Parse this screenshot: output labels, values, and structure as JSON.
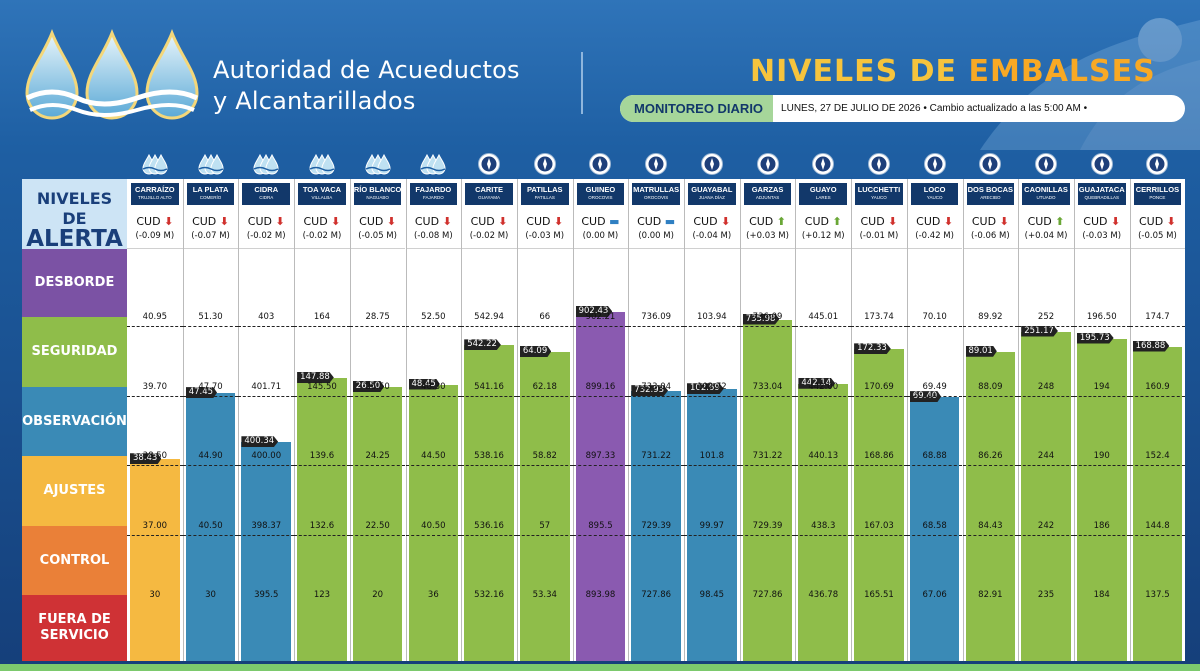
{
  "header": {
    "org_line1": "Autoridad de Acueductos",
    "org_line2": "y Alcantarillados",
    "title_a": "NIVELES DE ",
    "title_b": "EMBALSES",
    "monitor_label": "MONITOREO DIARIO",
    "date_text": "LUNES, 27 DE JULIO DE 2026 • Cambio actualizado a las 5:00 AM •"
  },
  "legend": {
    "title_line1": "NIVELES DE",
    "title_line2": "ALERTA",
    "levels": [
      {
        "label": "DESBORDE",
        "color": "#7b52a4"
      },
      {
        "label": "SEGURIDAD",
        "color": "#8fbd4a"
      },
      {
        "label": "OBSERVACIÓN",
        "color": "#3a8ab6"
      },
      {
        "label": "AJUSTES",
        "color": "#f5b941"
      },
      {
        "label": "CONTROL",
        "color": "#ea8038"
      },
      {
        "label": "FUERA DE SERVICIO",
        "color": "#cf3235"
      }
    ]
  },
  "colors": {
    "desborde": "#8a5ab0",
    "seguridad": "#8fbd4a",
    "observacion": "#3a8ab6",
    "ajustes": "#f5b941",
    "control": "#ea8038",
    "fuera": "#cf3235",
    "up_arrow": "#6aa736",
    "down_arrow": "#d0312d",
    "flat": "#2f7fc2"
  },
  "chart_data": {
    "type": "bar",
    "unit": "CUD",
    "reservoirs": [
      {
        "name": "CARRAÍZO",
        "muni": "TRUJILLO ALTO",
        "change": "(-0.09 M)",
        "trend": "down",
        "level": "38.43",
        "state": "ajustes",
        "icon": "drops",
        "thresholds": [
          "40.95",
          "39.70",
          "38.50",
          "37.00",
          "30"
        ]
      },
      {
        "name": "LA PLATA",
        "muni": "COMERÍO",
        "change": "(-0.07 M)",
        "trend": "down",
        "level": "47.45",
        "state": "observacion",
        "icon": "drops",
        "thresholds": [
          "51.30",
          "47.70",
          "44.90",
          "40.50",
          "30"
        ]
      },
      {
        "name": "CIDRA",
        "muni": "CIDRA",
        "change": "(-0.02 M)",
        "trend": "down",
        "level": "400.34",
        "state": "observacion",
        "icon": "drops",
        "thresholds": [
          "403",
          "401.71",
          "400.00",
          "398.37",
          "395.5"
        ]
      },
      {
        "name": "TOA VACA",
        "muni": "VILLALBA",
        "change": "(-0.02 M)",
        "trend": "down",
        "level": "147.88",
        "state": "seguridad",
        "icon": "drops",
        "thresholds": [
          "164",
          "145.50",
          "139.6",
          "132.6",
          "123"
        ]
      },
      {
        "name": "RÍO BLANCO",
        "muni": "NAGUABO",
        "change": "(-0.05 M)",
        "trend": "down",
        "level": "26.50",
        "state": "seguridad",
        "icon": "drops",
        "thresholds": [
          "28.75",
          "26.50",
          "24.25",
          "22.50",
          "20"
        ]
      },
      {
        "name": "FAJARDO",
        "muni": "FAJARDO",
        "change": "(-0.08 M)",
        "trend": "down",
        "level": "48.45",
        "state": "seguridad",
        "icon": "drops",
        "thresholds": [
          "52.50",
          "48.30",
          "44.50",
          "40.50",
          "36"
        ]
      },
      {
        "name": "CARITE",
        "muni": "GUAYAMA",
        "change": "(-0.02 M)",
        "trend": "down",
        "level": "542.22",
        "state": "seguridad",
        "icon": "seal",
        "thresholds": [
          "542.94",
          "541.16",
          "538.16",
          "536.16",
          "532.16"
        ]
      },
      {
        "name": "PATILLAS",
        "muni": "PATILLAS",
        "change": "(-0.03 M)",
        "trend": "down",
        "level": "64.09",
        "state": "seguridad",
        "icon": "seal",
        "thresholds": [
          "66",
          "62.18",
          "58.82",
          "57",
          "53.34"
        ]
      },
      {
        "name": "GUINEO",
        "muni": "OROCOVIS",
        "change": "(0.00 M)",
        "trend": "flat",
        "level": "902.43",
        "state": "desborde",
        "icon": "seal",
        "thresholds": [
          "902.21",
          "899.16",
          "897.33",
          "895.5",
          "893.98"
        ]
      },
      {
        "name": "MATRULLAS",
        "muni": "OROCOVIS",
        "change": "(0.00 M)",
        "trend": "flat",
        "level": "732.93",
        "state": "observacion",
        "icon": "seal",
        "thresholds": [
          "736.09",
          "733.04",
          "731.22",
          "729.39",
          "727.86"
        ]
      },
      {
        "name": "GUAYABAL",
        "muni": "JUANA DÍAZ",
        "change": "(-0.04 M)",
        "trend": "down",
        "level": "102.69",
        "state": "observacion",
        "icon": "seal",
        "thresholds": [
          "103.94",
          "102.72",
          "101.8",
          "99.97",
          "98.45"
        ]
      },
      {
        "name": "GARZAS",
        "muni": "ADJUNTAS",
        "change": "(+0.03 M)",
        "trend": "up",
        "level": "735.98",
        "state": "seguridad",
        "icon": "seal",
        "thresholds": [
          "736.09",
          "733.04",
          "731.22",
          "729.39",
          "727.86"
        ]
      },
      {
        "name": "GUAYO",
        "muni": "LARES",
        "change": "(+0.12 M)",
        "trend": "up",
        "level": "442.14",
        "state": "seguridad",
        "icon": "seal",
        "thresholds": [
          "445.01",
          "442.00",
          "440.13",
          "438.3",
          "436.78"
        ]
      },
      {
        "name": "LUCCHETTI",
        "muni": "YAUCO",
        "change": "(-0.01 M)",
        "trend": "down",
        "level": "172.33",
        "state": "seguridad",
        "icon": "seal",
        "thresholds": [
          "173.74",
          "170.69",
          "168.86",
          "167.03",
          "165.51"
        ]
      },
      {
        "name": "LOCO",
        "muni": "YAUCO",
        "change": "(-0.42 M)",
        "trend": "down",
        "level": "69.40",
        "state": "observacion",
        "icon": "seal",
        "thresholds": [
          "70.10",
          "69.49",
          "68.88",
          "68.58",
          "67.06"
        ]
      },
      {
        "name": "DOS BOCAS",
        "muni": "ARECIBO",
        "change": "(-0.06 M)",
        "trend": "down",
        "level": "89.01",
        "state": "seguridad",
        "icon": "seal",
        "thresholds": [
          "89.92",
          "88.09",
          "86.26",
          "84.43",
          "82.91"
        ]
      },
      {
        "name": "CAONILLAS",
        "muni": "UTUADO",
        "change": "(+0.04 M)",
        "trend": "up",
        "level": "251.17",
        "state": "seguridad",
        "icon": "seal",
        "thresholds": [
          "252",
          "248",
          "244",
          "242",
          "235"
        ]
      },
      {
        "name": "GUAJATACA",
        "muni": "QUEBRADILLAS",
        "change": "(-0.03 M)",
        "trend": "down",
        "level": "195.73",
        "state": "seguridad",
        "icon": "seal",
        "thresholds": [
          "196.50",
          "194",
          "190",
          "186",
          "184"
        ]
      },
      {
        "name": "CERRILLOS",
        "muni": "PONCE",
        "change": "(-0.05 M)",
        "trend": "down",
        "level": "168.88",
        "state": "seguridad",
        "icon": "seal",
        "thresholds": [
          "174.7",
          "160.9",
          "152.4",
          "144.8",
          "137.5"
        ]
      }
    ]
  }
}
